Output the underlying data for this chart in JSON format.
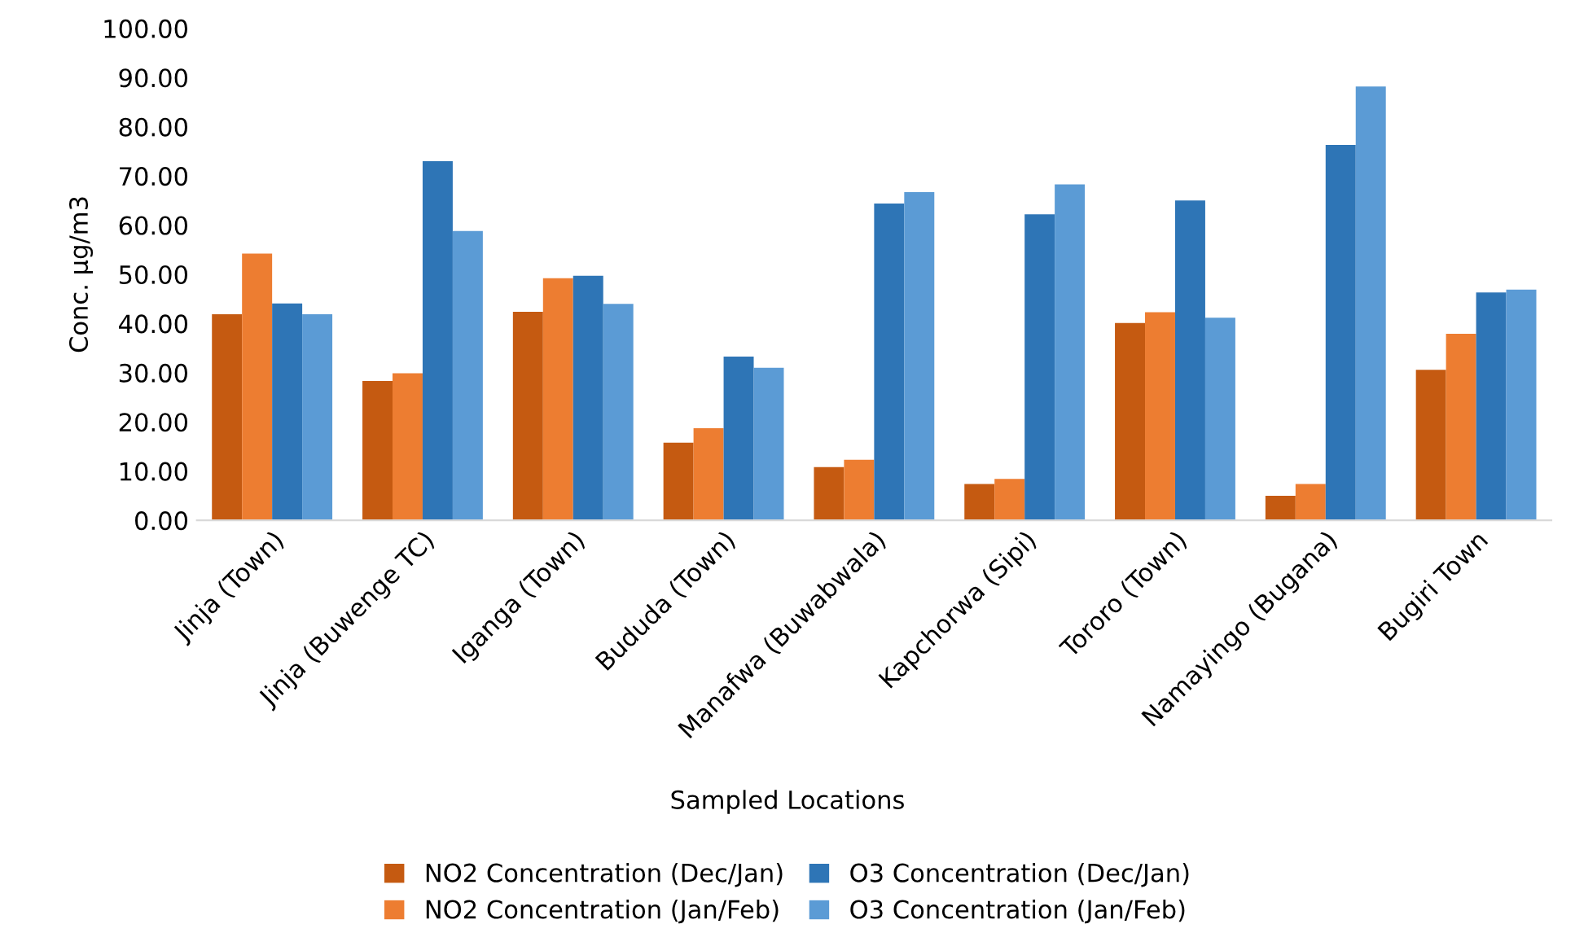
{
  "chart_data": {
    "type": "bar",
    "categories": [
      "Jinja (Town)",
      "Jinja (Buwenge TC)",
      "Iganga (Town)",
      "Bududa (Town)",
      "Manafwa (Buwabwala)",
      "Kapchorwa (Sipi)",
      "Tororo (Town)",
      "Namayingo (Bugana)",
      "Bugiri Town"
    ],
    "series": [
      {
        "name": "NO2 Concentration (Dec/Jan)",
        "color": "#c55a11",
        "values": [
          41.9,
          28.3,
          42.4,
          15.8,
          10.8,
          7.4,
          40.1,
          5.0,
          30.6
        ]
      },
      {
        "name": "NO2 Concentration (Jan/Feb)",
        "color": "#ed7d31",
        "values": [
          54.2,
          29.9,
          49.2,
          18.7,
          12.3,
          8.4,
          42.3,
          7.4,
          37.9
        ]
      },
      {
        "name": "O3 Concentration (Dec/Jan)",
        "color": "#2e75b6",
        "values": [
          44.1,
          73.0,
          49.7,
          33.3,
          64.4,
          62.2,
          65.0,
          76.3,
          46.3
        ]
      },
      {
        "name": "O3 Concentration (Jan/Feb)",
        "color": "#5b9bd5",
        "values": [
          41.9,
          58.8,
          44.0,
          31.0,
          66.7,
          68.3,
          41.2,
          88.2,
          46.9
        ]
      }
    ],
    "xlabel": "Sampled Locations",
    "ylabel": "Conc. µg/m3",
    "ylim": [
      0,
      100
    ],
    "yticks": [
      {
        "value": 0,
        "label": "0.00"
      },
      {
        "value": 10,
        "label": "10.00"
      },
      {
        "value": 20,
        "label": "20.00"
      },
      {
        "value": 30,
        "label": "30.00"
      },
      {
        "value": 40,
        "label": "40.00"
      },
      {
        "value": 50,
        "label": "50.00"
      },
      {
        "value": 60,
        "label": "60.00"
      },
      {
        "value": 70,
        "label": "70.00"
      },
      {
        "value": 80,
        "label": "80.00"
      },
      {
        "value": 90,
        "label": "90.00"
      },
      {
        "value": 100,
        "label": "100.00"
      }
    ],
    "grid": false,
    "legend": "bottom"
  }
}
